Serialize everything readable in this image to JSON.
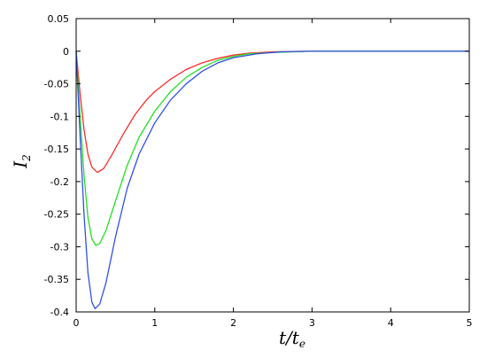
{
  "chart_data": {
    "type": "line",
    "title": "",
    "xlabel": {
      "main": "t/t",
      "sub": "e"
    },
    "ylabel": {
      "main": "I",
      "sub": "2"
    },
    "xlim": [
      0,
      5
    ],
    "ylim": [
      -0.4,
      0.05
    ],
    "xticks": [
      "0",
      "1",
      "2",
      "3",
      "4",
      "5"
    ],
    "yticks": [
      "0.05",
      "0",
      "-0.05",
      "-0.1",
      "-0.15",
      "-0.2",
      "-0.25",
      "-0.3",
      "-0.35",
      "-0.4"
    ],
    "grid": false,
    "legend": "none",
    "series": [
      {
        "color": "#ff2a2a",
        "points": [
          [
            0,
            0
          ],
          [
            0.05,
            -0.065
          ],
          [
            0.1,
            -0.12
          ],
          [
            0.15,
            -0.158
          ],
          [
            0.2,
            -0.178
          ],
          [
            0.27,
            -0.186
          ],
          [
            0.35,
            -0.18
          ],
          [
            0.45,
            -0.16
          ],
          [
            0.6,
            -0.127
          ],
          [
            0.75,
            -0.097
          ],
          [
            0.9,
            -0.074
          ],
          [
            1.0,
            -0.062
          ],
          [
            1.2,
            -0.043
          ],
          [
            1.4,
            -0.028
          ],
          [
            1.6,
            -0.018
          ],
          [
            1.8,
            -0.011
          ],
          [
            2.0,
            -0.006
          ],
          [
            2.2,
            -0.003
          ],
          [
            2.5,
            -0.001
          ],
          [
            3.0,
            0
          ],
          [
            5.0,
            0
          ]
        ]
      },
      {
        "color": "#22e022",
        "points": [
          [
            0,
            0
          ],
          [
            0.05,
            -0.1
          ],
          [
            0.1,
            -0.19
          ],
          [
            0.15,
            -0.255
          ],
          [
            0.2,
            -0.288
          ],
          [
            0.25,
            -0.298
          ],
          [
            0.3,
            -0.295
          ],
          [
            0.38,
            -0.275
          ],
          [
            0.5,
            -0.23
          ],
          [
            0.65,
            -0.175
          ],
          [
            0.8,
            -0.132
          ],
          [
            1.0,
            -0.092
          ],
          [
            1.2,
            -0.062
          ],
          [
            1.4,
            -0.04
          ],
          [
            1.6,
            -0.025
          ],
          [
            1.8,
            -0.014
          ],
          [
            2.0,
            -0.008
          ],
          [
            2.2,
            -0.004
          ],
          [
            2.5,
            -0.002
          ],
          [
            3.0,
            0
          ],
          [
            5.0,
            0
          ]
        ]
      },
      {
        "color": "#3050e8",
        "points": [
          [
            0,
            0
          ],
          [
            0.05,
            -0.13
          ],
          [
            0.1,
            -0.25
          ],
          [
            0.15,
            -0.34
          ],
          [
            0.2,
            -0.385
          ],
          [
            0.24,
            -0.395
          ],
          [
            0.3,
            -0.388
          ],
          [
            0.38,
            -0.355
          ],
          [
            0.5,
            -0.285
          ],
          [
            0.65,
            -0.21
          ],
          [
            0.8,
            -0.158
          ],
          [
            1.0,
            -0.11
          ],
          [
            1.2,
            -0.075
          ],
          [
            1.4,
            -0.05
          ],
          [
            1.6,
            -0.031
          ],
          [
            1.8,
            -0.018
          ],
          [
            2.0,
            -0.01
          ],
          [
            2.3,
            -0.004
          ],
          [
            2.6,
            -0.001
          ],
          [
            3.0,
            0
          ],
          [
            5.0,
            0
          ]
        ]
      }
    ]
  }
}
